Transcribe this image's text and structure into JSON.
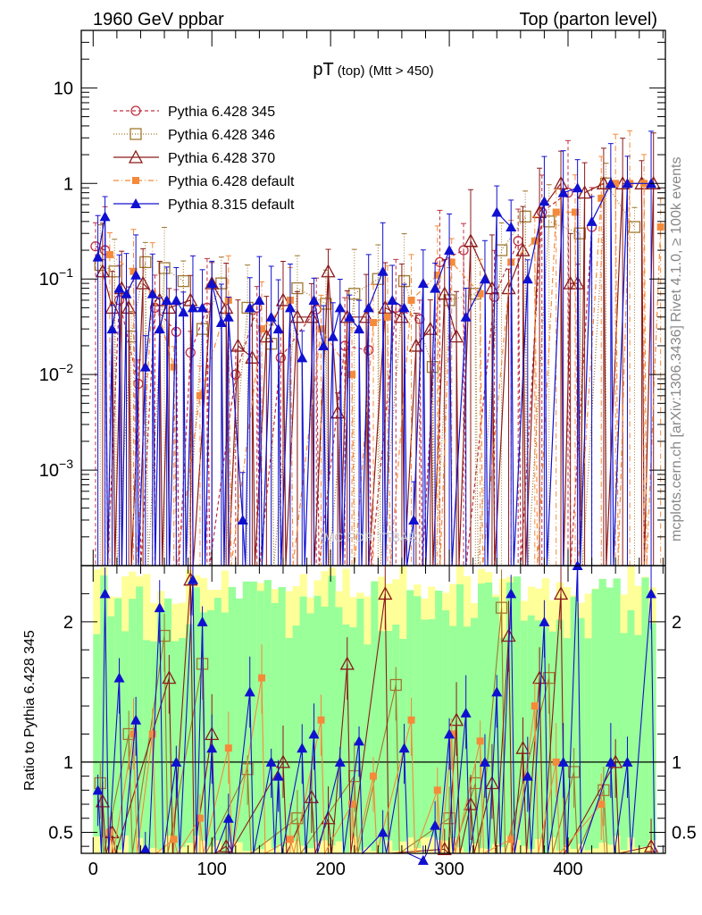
{
  "header": {
    "left": "1960 GeV ppbar",
    "right": "Top (parton level)"
  },
  "side_labels": {
    "rivet": "Rivet 4.1.0, ≥ 100k events",
    "mcplots": "mcplots.cern.ch [arXiv:1306.3436]"
  },
  "watermark": "(MC FOR TTBAR)",
  "colors": {
    "p345": "#c03040",
    "p346": "#a0782f",
    "p370": "#8b1a1a",
    "p6def": "#f58a3a",
    "p8def": "#1010d0",
    "band_yellow": "#ffff99",
    "band_green": "#99ff99"
  },
  "chart_data": [
    {
      "type": "line",
      "title": "pT (top) (Mtt > 450)",
      "title_main": "pT",
      "title_sub": "(top) (Mtt > 450)",
      "yscale": "log",
      "xlim": [
        -10,
        482
      ],
      "ylim": [
        0.0001,
        40
      ],
      "yticks": [
        {
          "value": 0.001,
          "base": "10",
          "exp": "−3"
        },
        {
          "value": 0.01,
          "base": "10",
          "exp": "−2"
        },
        {
          "value": 0.1,
          "base": "10",
          "exp": "−1"
        },
        {
          "value": 1,
          "base": "1",
          "exp": ""
        },
        {
          "value": 10,
          "base": "10",
          "exp": ""
        }
      ],
      "legend_position": "top-left",
      "series": [
        {
          "name": "Pythia 6.428 345",
          "marker": "circle-open",
          "color": "#c03040",
          "dash": "4,3",
          "x": [
            2,
            10,
            22,
            38,
            52,
            70,
            82,
            96,
            120,
            138,
            158,
            188,
            212,
            232,
            255,
            275,
            292,
            312,
            338,
            358,
            378,
            400,
            420
          ],
          "y": [
            0.22,
            0.2,
            0.06,
            0.008,
            0.05,
            0.028,
            0.017,
            0.05,
            0.01,
            0.05,
            0.015,
            0.048,
            0.02,
            0.018,
            0.05,
            0.038,
            0.15,
            0.2,
            0.065,
            0.25,
            0.5,
            0.8,
            0.35
          ]
        },
        {
          "name": "Pythia 6.428 346",
          "marker": "square-open",
          "color": "#a0782f",
          "dash": "1,2",
          "x": [
            6,
            18,
            32,
            44,
            60,
            76,
            92,
            108,
            130,
            150,
            172,
            196,
            220,
            240,
            262,
            286,
            300,
            322,
            344,
            364,
            384,
            410,
            432,
            456
          ],
          "y": [
            0.14,
            0.12,
            0.025,
            0.15,
            0.13,
            0.095,
            0.03,
            0.09,
            0.05,
            0.021,
            0.08,
            0.055,
            0.07,
            0.1,
            0.095,
            0.012,
            0.06,
            0.07,
            0.2,
            0.45,
            0.4,
            0.3,
            1.0,
            0.35
          ]
        },
        {
          "name": "Pythia 6.428 370",
          "marker": "triangle-open",
          "color": "#8b1a1a",
          "dash": "",
          "x": [
            8,
            16,
            24,
            30,
            42,
            56,
            64,
            82,
            100,
            112,
            122,
            134,
            146,
            160,
            172,
            184,
            198,
            206,
            214,
            230,
            246,
            260,
            272,
            284,
            296,
            306,
            318,
            336,
            350,
            362,
            376,
            394,
            402,
            408,
            414,
            430,
            446,
            462,
            472
          ],
          "y": [
            0.12,
            0.05,
            0.08,
            0.05,
            0.09,
            0.06,
            0.05,
            0.06,
            0.09,
            0.05,
            0.02,
            0.015,
            0.025,
            0.06,
            0.04,
            0.04,
            0.12,
            0.004,
            0.04,
            0.04,
            0.05,
            0.04,
            0.02,
            0.03,
            0.07,
            0.025,
            0.25,
            0.08,
            0.08,
            0.2,
            0.5,
            1.0,
            0.09,
            0.09,
            0.8,
            1.0,
            1.0,
            1.0,
            1.0
          ]
        },
        {
          "name": "Pythia 6.428 default",
          "marker": "square-filled",
          "color": "#f58a3a",
          "dash": "6,3,1,3",
          "x": [
            14,
            34,
            50,
            68,
            90,
            114,
            142,
            166,
            192,
            218,
            236,
            248,
            268,
            290,
            302,
            326,
            352,
            372,
            390,
            406,
            428,
            440,
            452,
            464,
            478
          ],
          "y": [
            0.18,
            0.12,
            0.07,
            0.012,
            0.006,
            0.06,
            0.03,
            0.06,
            0.03,
            0.01,
            0.035,
            0.04,
            0.06,
            0.11,
            0.15,
            0.07,
            0.15,
            0.25,
            0.5,
            0.5,
            0.7,
            1.0,
            1.0,
            1.0,
            0.35
          ]
        },
        {
          "name": "Pythia 8.315 default",
          "marker": "triangle-filled",
          "color": "#1010d0",
          "dash": "",
          "x": [
            4,
            10,
            16,
            22,
            28,
            36,
            44,
            50,
            56,
            62,
            70,
            76,
            84,
            92,
            100,
            108,
            114,
            126,
            132,
            140,
            150,
            156,
            166,
            176,
            186,
            194,
            202,
            208,
            216,
            224,
            232,
            244,
            252,
            262,
            270,
            278,
            288,
            300,
            314,
            330,
            340,
            352,
            366,
            380,
            396,
            408,
            420,
            436,
            450,
            470
          ],
          "y": [
            0.17,
            0.45,
            0.03,
            0.08,
            0.07,
            0.11,
            0.012,
            0.07,
            0.03,
            0.06,
            0.06,
            0.045,
            0.05,
            0.05,
            0.09,
            0.035,
            0.04,
            0.0003,
            0.05,
            0.06,
            0.04,
            0.03,
            0.05,
            0.015,
            0.06,
            0.02,
            0.025,
            0.05,
            0.04,
            0.03,
            0.05,
            0.12,
            0.06,
            0.05,
            0.0003,
            0.09,
            0.08,
            0.2,
            0.04,
            0.1,
            0.5,
            0.35,
            0.1,
            0.65,
            0.8,
            0.9,
            0.4,
            1.0,
            1.0,
            1.0
          ]
        }
      ]
    },
    {
      "type": "line",
      "ylabel": "Ratio to Pythia 6.428 345",
      "xlim": [
        -10,
        482
      ],
      "ylim": [
        0.35,
        2.4
      ],
      "yticks": [
        0.5,
        1,
        2
      ],
      "xticks": [
        0,
        100,
        200,
        300,
        400
      ],
      "reference": 1,
      "series": [
        {
          "name": "Pythia 6.428 346",
          "color": "#a0782f",
          "x": [
            6,
            30,
            60,
            92,
            130,
            172,
            220,
            255,
            300,
            322,
            344,
            384,
            405,
            430
          ],
          "y": [
            0.85,
            1.2,
            1.9,
            1.7,
            0.95,
            0.6,
            0.9,
            1.55,
            0.6,
            0.85,
            2.1,
            1.6,
            0.93,
            0.8
          ]
        },
        {
          "name": "Pythia 6.428 370",
          "color": "#8b1a1a",
          "x": [
            8,
            16,
            64,
            82,
            100,
            112,
            160,
            184,
            198,
            214,
            246,
            296,
            306,
            318,
            336,
            350,
            362,
            376,
            394,
            440,
            470
          ],
          "y": [
            0.72,
            0.5,
            1.6,
            2.3,
            1.2,
            0.4,
            1.0,
            0.75,
            0.6,
            1.7,
            2.2,
            0.38,
            1.3,
            0.7,
            0.85,
            1.9,
            1.1,
            1.6,
            2.2,
            1.0,
            0.4
          ]
        },
        {
          "name": "Pythia 6.428 default",
          "color": "#f58a3a",
          "x": [
            14,
            34,
            50,
            68,
            90,
            114,
            142,
            166,
            192,
            218,
            236,
            268,
            290,
            302,
            326,
            352,
            372,
            390,
            428
          ],
          "y": [
            0.5,
            1.2,
            1.2,
            0.45,
            0.6,
            1.1,
            1.6,
            0.45,
            1.3,
            0.7,
            0.9,
            1.3,
            0.8,
            1.2,
            1.15,
            0.45,
            1.4,
            1.0,
            0.7
          ]
        },
        {
          "name": "Pythia 8.315 default",
          "color": "#1010d0",
          "x": [
            4,
            10,
            22,
            36,
            44,
            56,
            70,
            84,
            92,
            100,
            114,
            132,
            150,
            156,
            176,
            186,
            208,
            224,
            244,
            262,
            278,
            288,
            300,
            314,
            330,
            340,
            352,
            366,
            380,
            396,
            408,
            436,
            450,
            470
          ],
          "y": [
            0.8,
            2.2,
            1.6,
            1.3,
            0.38,
            2.1,
            1.0,
            2.3,
            2.0,
            1.1,
            0.6,
            1.5,
            1.0,
            0.9,
            1.1,
            1.2,
            1.0,
            1.15,
            0.5,
            1.1,
            0.3,
            0.55,
            1.2,
            1.35,
            1.0,
            1.5,
            2.2,
            0.9,
            2.0,
            1.0,
            2.4,
            1.0,
            1.0,
            2.2
          ]
        }
      ]
    }
  ]
}
